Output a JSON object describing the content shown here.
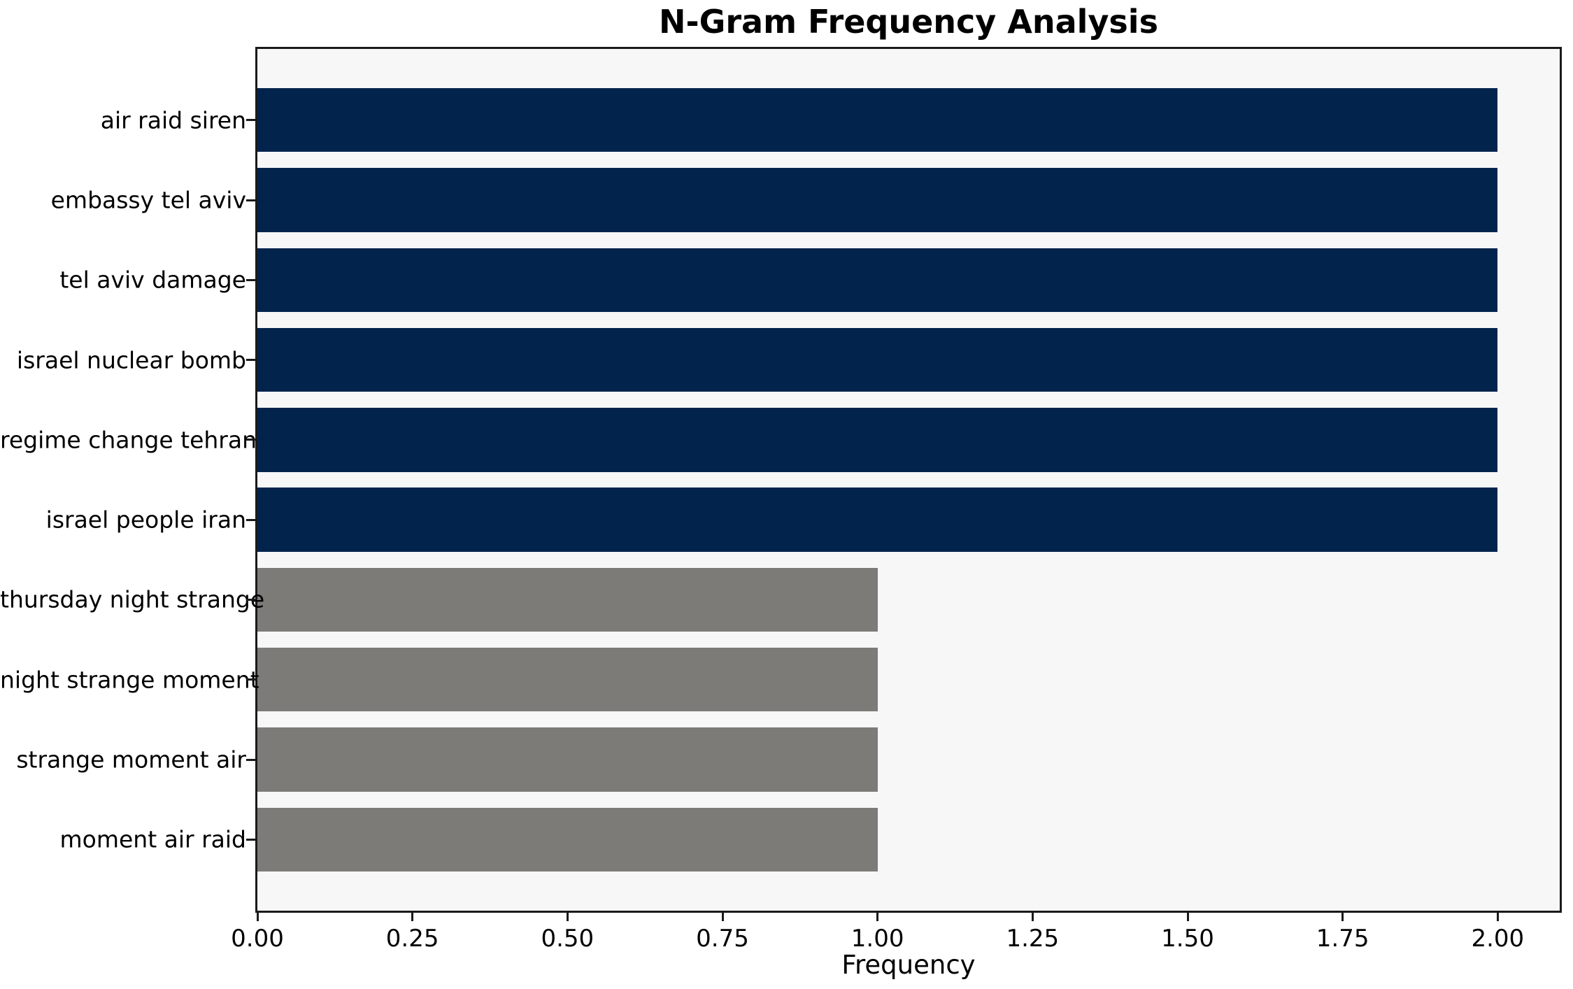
{
  "chart_data": {
    "type": "bar",
    "orientation": "horizontal",
    "title": "N-Gram Frequency Analysis",
    "xlabel": "Frequency",
    "ylabel": "",
    "categories": [
      "air raid siren",
      "embassy tel aviv",
      "tel aviv damage",
      "israel nuclear bomb",
      "regime change tehran",
      "israel people iran",
      "thursday night strange",
      "night strange moment",
      "strange moment air",
      "moment air raid"
    ],
    "values": [
      2,
      2,
      2,
      2,
      2,
      2,
      1,
      1,
      1,
      1
    ],
    "bar_colors": [
      "#02244C",
      "#02244C",
      "#02244C",
      "#02244C",
      "#02244C",
      "#02244C",
      "#7C7B78",
      "#7C7B78",
      "#7C7B78",
      "#7C7B78"
    ],
    "xlim": [
      0,
      2.1
    ],
    "x_ticks": [
      0.0,
      0.25,
      0.5,
      0.75,
      1.0,
      1.25,
      1.5,
      1.75,
      2.0
    ],
    "x_tick_labels": [
      "0.00",
      "0.25",
      "0.50",
      "0.75",
      "1.00",
      "1.25",
      "1.50",
      "1.75",
      "2.00"
    ],
    "grid": false,
    "legend": null,
    "colors": {
      "plot_bg": "#F7F7F8",
      "figure_bg": "#FFFFFF",
      "spine": "#1A1A1A",
      "text": "#000000"
    }
  }
}
